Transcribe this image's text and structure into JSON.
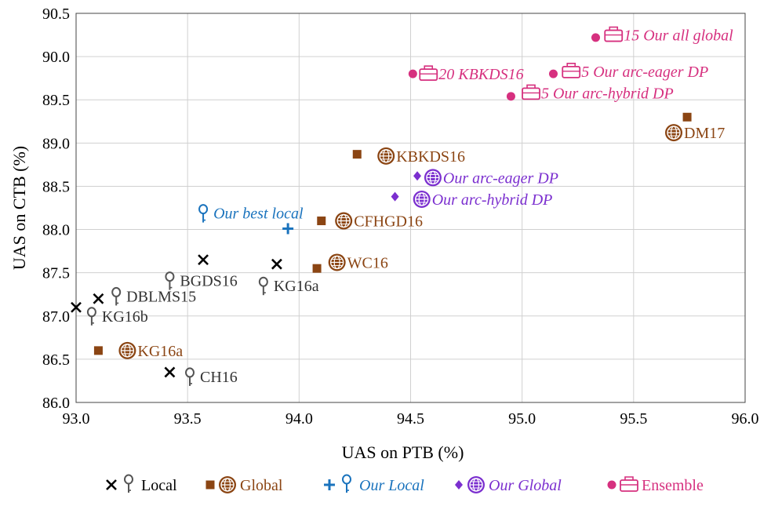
{
  "chart_data": {
    "type": "scatter",
    "xlabel": "UAS on PTB (%)",
    "ylabel": "UAS on CTB (%)",
    "xlim": [
      93.0,
      96.0
    ],
    "ylim": [
      86.0,
      90.5
    ],
    "xticks": [
      "93.0",
      "93.5",
      "94.0",
      "94.5",
      "95.0",
      "95.5",
      "96.0"
    ],
    "yticks": [
      "86.0",
      "86.5",
      "87.0",
      "87.5",
      "88.0",
      "88.5",
      "89.0",
      "89.5",
      "90.0",
      "90.5"
    ],
    "grid": true,
    "legend_position": "bottom",
    "colors": {
      "local": "#000000",
      "local_icon": "#555555",
      "global": "#8b4513",
      "our_local": "#1a73bd",
      "our_global": "#7b2fcf",
      "ensemble": "#d6307f",
      "grid": "#d0d0d0"
    },
    "legend": [
      {
        "key": "local",
        "label": "Local"
      },
      {
        "key": "global",
        "label": "Global"
      },
      {
        "key": "our_local",
        "label": "Our Local"
      },
      {
        "key": "our_global",
        "label": "Our Global"
      },
      {
        "key": "ensemble",
        "label": "Ensemble"
      }
    ],
    "points": [
      {
        "cat": "local",
        "x": 93.57,
        "y": 87.65,
        "label": ""
      },
      {
        "cat": "local",
        "x": 93.9,
        "y": 87.6,
        "label": ""
      },
      {
        "cat": "local",
        "x": 93.1,
        "y": 87.2,
        "label": ""
      },
      {
        "cat": "local",
        "x": 93.0,
        "y": 87.1,
        "label": ""
      },
      {
        "cat": "local",
        "x": 93.42,
        "y": 86.35,
        "label": ""
      },
      {
        "cat": "global",
        "x": 95.74,
        "y": 89.3,
        "label": ""
      },
      {
        "cat": "global",
        "x": 94.26,
        "y": 88.87,
        "label": ""
      },
      {
        "cat": "global",
        "x": 94.1,
        "y": 88.1,
        "label": ""
      },
      {
        "cat": "global",
        "x": 94.08,
        "y": 87.55,
        "label": ""
      },
      {
        "cat": "global",
        "x": 93.1,
        "y": 86.6,
        "label": ""
      },
      {
        "cat": "our_local",
        "x": 93.95,
        "y": 88.01,
        "label": ""
      },
      {
        "cat": "our_global",
        "x": 94.53,
        "y": 88.62,
        "label": ""
      },
      {
        "cat": "our_global",
        "x": 94.43,
        "y": 88.38,
        "label": ""
      },
      {
        "cat": "ensemble",
        "x": 95.33,
        "y": 90.22,
        "label": ""
      },
      {
        "cat": "ensemble",
        "x": 94.51,
        "y": 89.8,
        "label": ""
      },
      {
        "cat": "ensemble",
        "x": 95.14,
        "y": 89.8,
        "label": ""
      },
      {
        "cat": "ensemble",
        "x": 94.95,
        "y": 89.54,
        "label": ""
      }
    ],
    "annotations": [
      {
        "icon": "local",
        "x": 93.42,
        "y": 87.41,
        "text": "BGDS16"
      },
      {
        "icon": "local",
        "x": 93.18,
        "y": 87.23,
        "text": "DBLMS15"
      },
      {
        "icon": "local",
        "x": 93.07,
        "y": 87.0,
        "text": "KG16b"
      },
      {
        "icon": "local",
        "x": 93.84,
        "y": 87.35,
        "text": "KG16a"
      },
      {
        "icon": "local",
        "x": 93.51,
        "y": 86.3,
        "text": "CH16"
      },
      {
        "icon": "global",
        "x": 95.68,
        "y": 89.12,
        "text": "DM17"
      },
      {
        "icon": "global",
        "x": 94.39,
        "y": 88.85,
        "text": "KBKDS16"
      },
      {
        "icon": "global",
        "x": 94.2,
        "y": 88.1,
        "text": "CFHGD16"
      },
      {
        "icon": "global",
        "x": 94.17,
        "y": 87.62,
        "text": "WC16"
      },
      {
        "icon": "global",
        "x": 93.23,
        "y": 86.6,
        "text": "KG16a"
      },
      {
        "icon": "our_local",
        "x": 93.57,
        "y": 88.19,
        "text": "Our best local"
      },
      {
        "icon": "our_global",
        "x": 94.6,
        "y": 88.6,
        "text": "Our arc-eager DP"
      },
      {
        "icon": "our_global",
        "x": 94.55,
        "y": 88.35,
        "text": "Our arc-hybrid DP"
      },
      {
        "icon": "ensemble",
        "x": 95.41,
        "y": 90.25,
        "text": "15 Our all global"
      },
      {
        "icon": "ensemble",
        "x": 94.58,
        "y": 89.8,
        "text": "20 KBKDS16"
      },
      {
        "icon": "ensemble",
        "x": 95.22,
        "y": 89.83,
        "text": "5 Our arc-eager DP"
      },
      {
        "icon": "ensemble",
        "x": 95.04,
        "y": 89.58,
        "text": "5 Our arc-hybrid DP"
      }
    ]
  }
}
